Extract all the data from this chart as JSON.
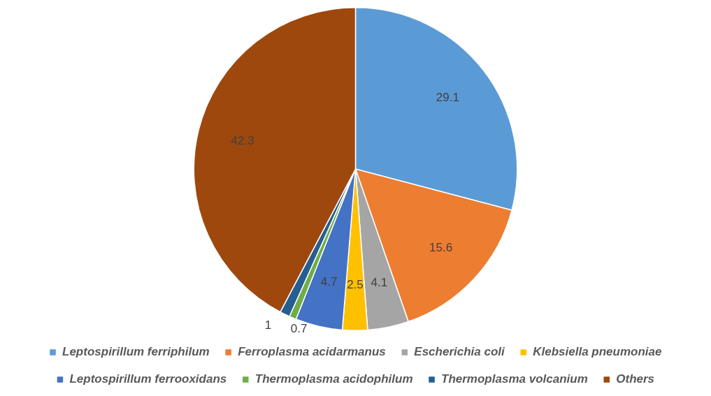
{
  "chart_data": {
    "type": "pie",
    "categories": [
      "Leptospirillum ferriphilum",
      "Ferroplasma acidarmanus",
      "Escherichia coli",
      "Klebsiella pneumoniae",
      "Leptospirillum ferrooxidans",
      "Thermoplasma acidophilum",
      "Thermoplasma volcanium",
      "Others"
    ],
    "values": [
      29.1,
      15.6,
      4.1,
      2.5,
      4.7,
      0.7,
      1,
      42.3
    ],
    "colors": [
      "#5b9bd5",
      "#ed7d31",
      "#a5a5a5",
      "#ffc000",
      "#4472c4",
      "#70ad47",
      "#255e91",
      "#9e480e"
    ],
    "data_labels": true,
    "legend": "bottom"
  }
}
